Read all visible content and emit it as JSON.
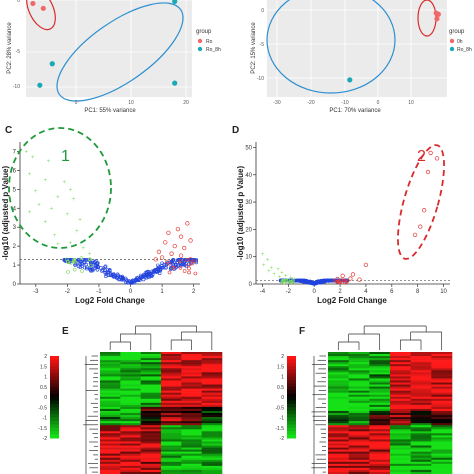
{
  "panels": {
    "A": {
      "xlabel": "PC1: 55% variance",
      "ylabel": "PC2: 28% variance",
      "xticks": [
        "0",
        "10",
        "20"
      ],
      "yticks": [
        "0",
        "-5",
        "-10"
      ],
      "legend_title": "group",
      "legend_items": [
        {
          "label": "Ro",
          "color": "#f0696a"
        },
        {
          "label": "Ro_8h",
          "color": "#1aaab6"
        }
      ]
    },
    "B": {
      "xlabel": "PC1: 70% variance",
      "ylabel": "PC2: 15% variance",
      "xticks": [
        "-30",
        "-20",
        "-10",
        "0",
        "10"
      ],
      "yticks": [
        "0",
        "-5",
        "-10"
      ],
      "legend_title": "group",
      "legend_items": [
        {
          "label": "0h",
          "color": "#f0696a"
        },
        {
          "label": "Ro_8h",
          "color": "#1aaab6"
        }
      ]
    },
    "C": {
      "letter": "C",
      "annotation": "1",
      "xlabel": "Log2 Fold Change",
      "ylabel": "-log10 (adjusted p Value)",
      "xticks": [
        "-3",
        "-2",
        "-1",
        "0",
        "1",
        "2"
      ],
      "yticks": [
        "0",
        "1",
        "2",
        "3",
        "4",
        "5",
        "6",
        "7"
      ]
    },
    "D": {
      "letter": "D",
      "annotation": "2",
      "xlabel": "Log2 Fold Change",
      "ylabel": "-log10 (adjusted p Value)",
      "xticks": [
        "-4",
        "-2",
        "0",
        "2",
        "4",
        "6",
        "8",
        "10"
      ],
      "yticks": [
        "0",
        "10",
        "20",
        "30",
        "40",
        "50"
      ]
    },
    "E": {
      "letter": "E",
      "colorbar_ticks": [
        "2",
        "1.5",
        "1",
        "0.5",
        "0",
        "-0.5",
        "-1",
        "-1.5",
        "-2"
      ]
    },
    "F": {
      "letter": "F",
      "colorbar_ticks": [
        "2",
        "1.5",
        "1",
        "0.5",
        "0",
        "-0.5",
        "-1",
        "-1.5",
        "-2"
      ]
    }
  },
  "colors": {
    "up": "#e53935",
    "down": "#2244dd",
    "sig_green": "#7ddb5a",
    "ellipse_red": "#d92b2b",
    "ellipse_blue": "#2d8fd0",
    "ellipse_green": "#1f9a3a",
    "heat_red": "#ff1a1a",
    "heat_green": "#16e016"
  },
  "chart_data": [
    {
      "type": "scatter",
      "panel": "A",
      "x_range": [
        -2,
        22
      ],
      "y_range": [
        -12,
        2
      ],
      "series": [
        {
          "name": "Ro",
          "points": [
            [
              -1,
              1.5
            ],
            [
              0.5,
              0.8
            ]
          ]
        },
        {
          "name": "Ro_8h",
          "points": [
            [
              19.5,
              1.8
            ],
            [
              1.8,
              -7.2
            ],
            [
              0,
              -10.3
            ],
            [
              19.5,
              -10.0
            ]
          ]
        }
      ]
    },
    {
      "type": "scatter",
      "panel": "B",
      "x_range": [
        -33,
        17
      ],
      "y_range": [
        -15,
        2
      ],
      "series": [
        {
          "name": "0h",
          "points": [
            [
              14,
              -0.3
            ],
            [
              14.6,
              -0.5
            ],
            [
              14.2,
              -1.3
            ]
          ]
        },
        {
          "name": "Ro_8h",
          "points": [
            [
              -10,
              -12
            ]
          ]
        }
      ]
    },
    {
      "type": "scatter",
      "panel": "C",
      "x_range": [
        -3.5,
        2.2
      ],
      "y_range": [
        0,
        7.5
      ],
      "threshold": 1.3,
      "green_points": [
        [
          -3.3,
          7.0
        ],
        [
          -3.1,
          6.7
        ],
        [
          -2.6,
          6.5
        ],
        [
          -3.2,
          5.8
        ],
        [
          -2.7,
          5.5
        ],
        [
          -2.1,
          5.4
        ],
        [
          -1.9,
          5.0
        ],
        [
          -3.0,
          4.9
        ],
        [
          -2.3,
          4.6
        ],
        [
          -1.8,
          4.5
        ],
        [
          -2.9,
          4.2
        ],
        [
          -2.5,
          4.0
        ],
        [
          -3.2,
          3.8
        ],
        [
          -2.0,
          3.7
        ],
        [
          -2.7,
          3.3
        ],
        [
          -1.6,
          3.4
        ],
        [
          -1.7,
          2.8
        ],
        [
          -2.4,
          2.6
        ],
        [
          -1.9,
          2.2
        ],
        [
          -2.3,
          2.1
        ],
        [
          -1.5,
          1.9
        ],
        [
          -1.3,
          1.6
        ]
      ],
      "red_points": [
        [
          1.8,
          3.2
        ],
        [
          1.5,
          2.9
        ],
        [
          1.2,
          2.7
        ],
        [
          1.6,
          2.5
        ],
        [
          1.9,
          2.3
        ],
        [
          1.1,
          2.2
        ],
        [
          1.4,
          2.0
        ],
        [
          1.7,
          1.9
        ],
        [
          0.9,
          1.7
        ],
        [
          1.3,
          1.6
        ],
        [
          1.6,
          1.5
        ],
        [
          1.0,
          1.4
        ],
        [
          0.8,
          1.3
        ],
        [
          1.9,
          1.3
        ]
      ]
    },
    {
      "type": "scatter",
      "panel": "D",
      "x_range": [
        -4.5,
        10.5
      ],
      "y_range": [
        0,
        52
      ],
      "threshold": 1.3,
      "green_points": [
        [
          -4.0,
          11.0
        ],
        [
          -3.6,
          9.0
        ],
        [
          -3.9,
          7.0
        ],
        [
          -3.3,
          6.0
        ],
        [
          -2.8,
          5.5
        ],
        [
          -3.5,
          4.8
        ],
        [
          -2.5,
          4.2
        ],
        [
          -3.1,
          3.6
        ],
        [
          -2.2,
          3.2
        ],
        [
          -2.7,
          2.6
        ],
        [
          -1.8,
          2.3
        ],
        [
          -1.5,
          1.9
        ]
      ],
      "red_points": [
        [
          9.0,
          48.0
        ],
        [
          9.5,
          46.0
        ],
        [
          8.8,
          41.0
        ],
        [
          8.5,
          27.0
        ],
        [
          8.2,
          21.0
        ],
        [
          7.8,
          18.0
        ],
        [
          4.0,
          7.0
        ],
        [
          3.0,
          3.5
        ],
        [
          2.2,
          3.0
        ],
        [
          2.8,
          2.0
        ],
        [
          1.8,
          1.8
        ],
        [
          3.5,
          1.6
        ]
      ]
    }
  ]
}
